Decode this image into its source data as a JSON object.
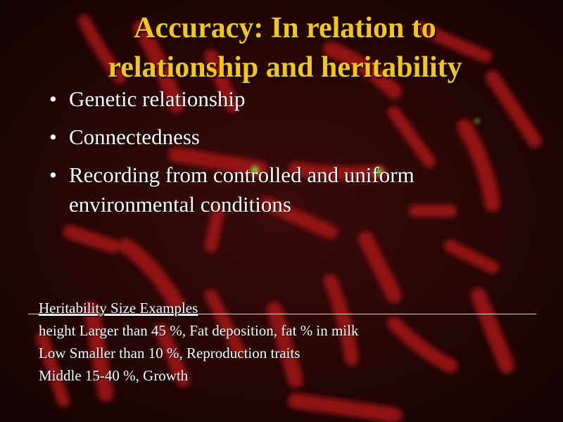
{
  "title": {
    "line1": "Accuracy: In relation to",
    "line2": "relationship and heritability"
  },
  "bullets": [
    {
      "line1": "Genetic relationship",
      "line2": ""
    },
    {
      "line1": "Connectedness",
      "line2": ""
    },
    {
      "line1": "Recording from controlled and uniform",
      "line2": "environmental conditions"
    }
  ],
  "bullet_glyph": "•",
  "table": {
    "header": "Heritability Size Examples",
    "rows": [
      "height Larger than 45 %, Fat deposition, fat % in milk",
      "Low Smaller than 10 %, Reproduction traits",
      "Middle 15-40 %, Growth"
    ]
  },
  "colors": {
    "title": "#f5c518",
    "text": "#ffffff",
    "background": "#260606",
    "chromosome": "#b01818",
    "signal": "#9acd32"
  },
  "background_image": "chromosome-spread-micrograph"
}
